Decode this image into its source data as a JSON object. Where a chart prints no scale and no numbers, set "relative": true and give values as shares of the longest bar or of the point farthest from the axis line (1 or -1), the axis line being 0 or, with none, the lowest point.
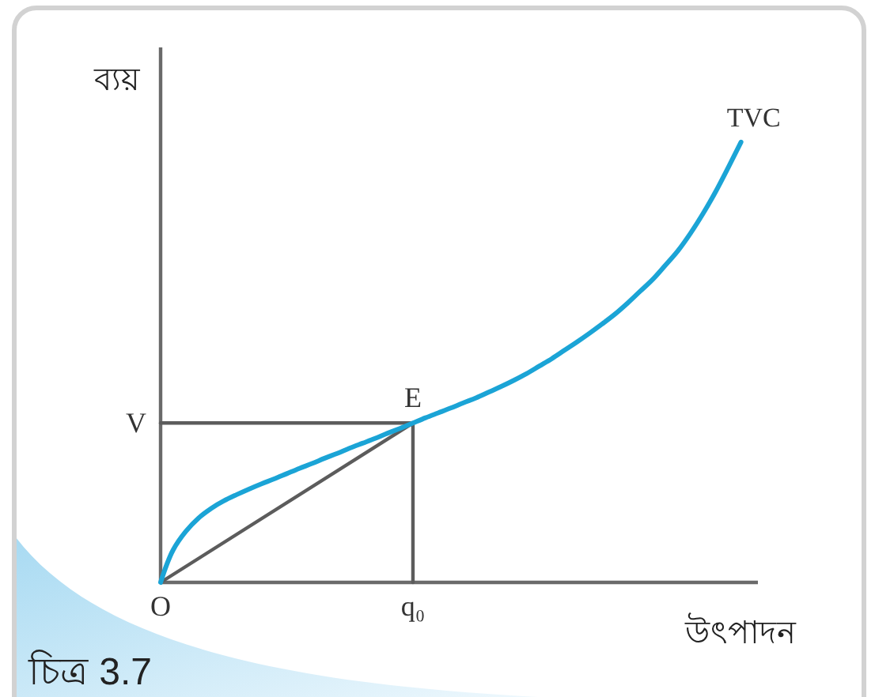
{
  "chart_data": {
    "type": "line",
    "relative": true,
    "xlabel": "উৎপাদন",
    "ylabel": "ব্যয়",
    "categories": [
      "O",
      null,
      null,
      null,
      null,
      null,
      null,
      null,
      null,
      null,
      null,
      null,
      null,
      null,
      null,
      null,
      null,
      null,
      null,
      null,
      "q₀",
      null,
      null,
      null,
      null,
      null,
      null,
      null,
      null,
      null,
      null,
      null,
      null,
      null,
      null,
      null,
      null,
      null,
      null,
      null,
      null,
      null,
      null,
      null,
      null,
      null,
      null
    ],
    "series": [
      {
        "name": "TVC",
        "color": "#1ba4d6",
        "values": [
          0,
          0.074,
          0.116,
          0.146,
          0.168,
          0.185,
          0.199,
          0.212,
          0.224,
          0.235,
          0.247,
          0.259,
          0.27,
          0.282,
          0.293,
          0.305,
          0.316,
          0.327,
          0.339,
          0.35,
          0.362,
          0.374,
          0.385,
          0.396,
          0.408,
          0.419,
          0.432,
          0.445,
          0.459,
          0.474,
          0.491,
          0.508,
          0.527,
          0.546,
          0.566,
          0.587,
          0.609,
          0.634,
          0.661,
          0.688,
          0.72,
          0.753,
          0.793,
          0.838,
          0.888,
          0.943,
          1
        ]
      },
      {
        "color": "#5c5c5c",
        "x": [
          "O",
          "q₀"
        ],
        "values": [
          0.362,
          0.362
        ]
      },
      {
        "color": "#5c5c5c",
        "x": [
          "q₀",
          "q₀"
        ],
        "values": [
          0.362,
          0
        ]
      },
      {
        "color": "#5c5c5c",
        "x": [
          "O",
          "q₀"
        ],
        "values": [
          0,
          0.362
        ]
      }
    ],
    "annotations": [
      {
        "text": "V",
        "x": "O",
        "y": 0.362
      },
      {
        "text": "E",
        "x": "q₀",
        "y": 0.362
      },
      "চিত্র 3.7"
    ],
    "line_style": "solid"
  }
}
